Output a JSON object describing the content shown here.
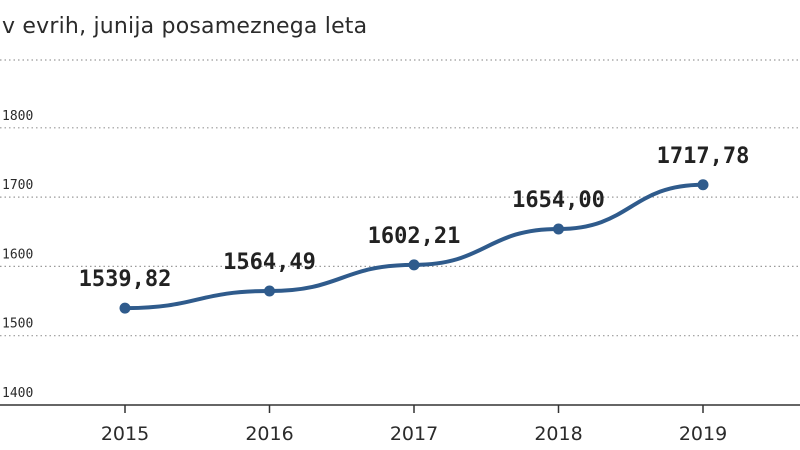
{
  "subtitle": "v evrih, junija posameznega leta",
  "colors": {
    "line": "#2f5b8c",
    "grid": "#9a9a9a",
    "axis": "#333333",
    "title_marks": "#2d2d2d"
  },
  "chart_data": {
    "type": "line",
    "title": "",
    "subtitle": "v evrih, junija posameznega leta",
    "xlabel": "",
    "ylabel": "",
    "x": [
      "2015",
      "2016",
      "2017",
      "2018",
      "2019"
    ],
    "series": [
      {
        "values": [
          1539.82,
          1564.49,
          1602.21,
          1654.0,
          1717.78
        ],
        "labels": [
          "1539,82",
          "1564,49",
          "1602,21",
          "1654,00",
          "1717,78"
        ]
      }
    ],
    "ylim": [
      1400,
      1900
    ],
    "yticks": [
      "1400",
      "1500",
      "1600",
      "1700",
      "1800"
    ],
    "grid": "horizontal dotted",
    "legend": "none"
  }
}
